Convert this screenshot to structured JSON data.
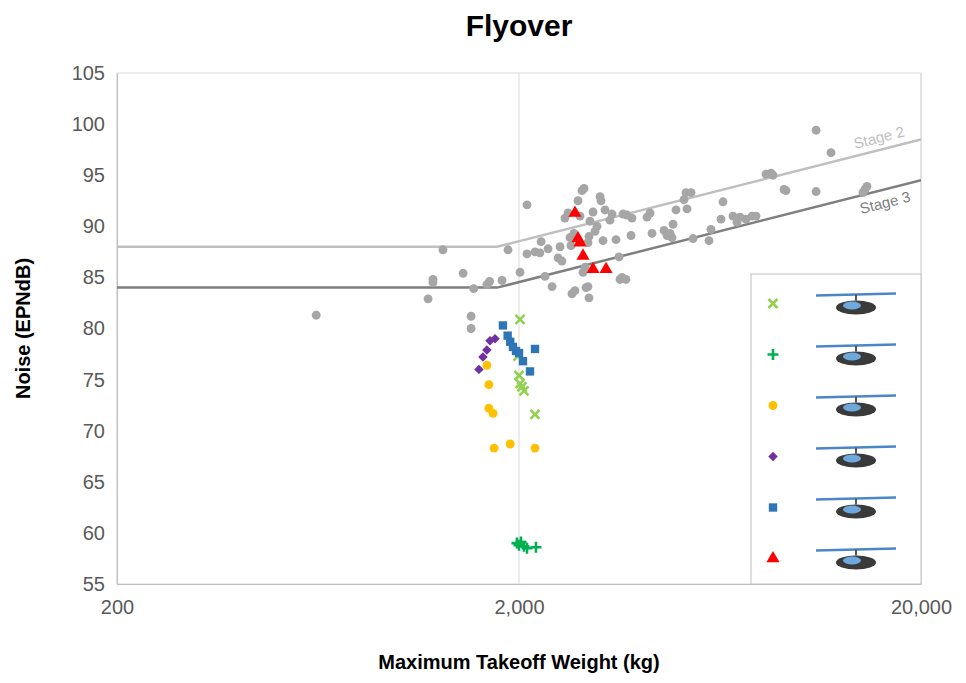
{
  "chart_data": {
    "type": "scatter",
    "title": "Flyover",
    "x_label": "Maximum Takeoff Weight (kg)",
    "y_label": "Noise (EPNdB)",
    "log": "x",
    "grid": "x",
    "legend": "lower right",
    "xlim": [
      200,
      20000
    ],
    "xticks": [
      200,
      {
        "value": 2000,
        "label": "2,000"
      },
      {
        "value": 20000,
        "label": "20,000"
      }
    ],
    "ylim": [
      55,
      105
    ],
    "yticks": [
      55,
      60,
      65,
      70,
      75,
      80,
      85,
      90,
      95,
      100,
      105
    ],
    "series": [
      {
        "type": "scatter",
        "color": "#a6a6a6",
        "x": [
          626,
          1188,
          1222,
          1222,
          1294,
          1452,
          1520,
          1520,
          1543,
          1664,
          1690,
          1815,
          1878,
          2012,
          2094,
          2094,
          2192,
          2254,
          2270,
          2322,
          2417,
          2362,
          2502,
          2558,
          2530,
          2602,
          2649,
          2678,
          2694,
          2709,
          2756,
          2740,
          2804,
          2836,
          2869,
          2903,
          2886,
          2919,
          2936,
          2969,
          2986,
          2969,
          2986,
          3003,
          3056,
          3091,
          3127,
          3181,
          3199,
          3236,
          3273,
          3368,
          3408,
          3486,
          3547,
          3567,
          3608,
          3691,
          3629,
          3712,
          3821,
          3799,
          4164,
          4236,
          4285,
          4590,
          4670,
          4750,
          4805,
          4833,
          4916,
          5146,
          5206,
          5358,
          5236,
          5420,
          5938,
          6006,
          6361,
          6434,
          6813,
          6970,
          7091,
          7340,
          7596,
          7774,
          8232,
          8474,
          8567,
          9126,
          9230,
          10967,
          10967,
          11944,
          14347,
          14510,
          14678
        ],
        "values": [
          81.3,
          82.9,
          84.5,
          84.8,
          87.7,
          85.4,
          81.2,
          80.0,
          83.9,
          84.3,
          84.6,
          84.7,
          87.7,
          85.5,
          92.1,
          87.3,
          87.5,
          87.4,
          88.5,
          85.1,
          84.1,
          87.8,
          86.9,
          86.6,
          88.0,
          90.8,
          91.3,
          88.9,
          88.1,
          83.4,
          83.7,
          89.3,
          92.5,
          91.0,
          93.5,
          93.7,
          85.5,
          86.0,
          84.0,
          84.1,
          83.0,
          88.4,
          89.0,
          90.5,
          91.4,
          89.5,
          90.0,
          92.9,
          92.5,
          88.6,
          91.6,
          90.6,
          91.2,
          88.7,
          87.0,
          84.8,
          85.0,
          84.8,
          91.2,
          91.1,
          90.8,
          89.1,
          90.9,
          91.3,
          89.3,
          89.6,
          89.1,
          89.3,
          88.9,
          90.2,
          91.6,
          92.6,
          93.3,
          93.3,
          91.7,
          88.8,
          88.6,
          89.7,
          90.7,
          92.4,
          91.0,
          90.4,
          90.9,
          90.7,
          91.0,
          91.0,
          95.1,
          95.2,
          95.0,
          93.6,
          93.5,
          99.4,
          93.4,
          97.2,
          93.3,
          93.6,
          93.9
        ]
      },
      {
        "name": "Stage 2",
        "type": "line",
        "color": "#bfbfbf",
        "line_style": "solid",
        "x": [
          200,
          1764,
          20000
        ],
        "values": [
          88,
          88,
          98.5
        ]
      },
      {
        "name": "Stage 3",
        "type": "line",
        "color": "#7f7f7f",
        "line_style": "solid",
        "x": [
          200,
          1764,
          20000
        ],
        "values": [
          84,
          84,
          94.5
        ]
      },
      {
        "type": "scatter",
        "color": "#92d050",
        "marker": "x",
        "x": [
          2012,
          1989,
          2000,
          2012,
          2034,
          2058,
          2192
        ],
        "values": [
          80.9,
          77.3,
          75.4,
          74.6,
          74.3,
          73.9,
          71.6
        ]
      },
      {
        "type": "scatter",
        "color": "#00b050",
        "marker": "plus",
        "x": [
          1977,
          2000,
          2023,
          2058,
          2094,
          2204
        ],
        "values": [
          59.0,
          58.8,
          59.1,
          58.7,
          58.5,
          58.6
        ]
      },
      {
        "type": "scatter",
        "color": "#ffc000",
        "marker": "circle",
        "x": [
          1664,
          1683,
          1683,
          1724,
          1734,
          1902,
          2192
        ],
        "values": [
          76.4,
          74.5,
          72.2,
          71.7,
          68.3,
          68.7,
          68.3
        ]
      },
      {
        "type": "scatter",
        "color": "#7030a0",
        "marker": "diamond",
        "x": [
          1590,
          1627,
          1664,
          1694,
          1744
        ],
        "values": [
          76.0,
          77.2,
          77.9,
          78.8,
          79.0
        ]
      },
      {
        "type": "scatter",
        "color": "#2e75b6",
        "marker": "square",
        "x": [
          1824,
          1874,
          1902,
          1932,
          1966,
          2000,
          2046,
          2130,
          2192
        ],
        "values": [
          80.3,
          79.3,
          78.7,
          78.2,
          77.8,
          77.6,
          76.8,
          75.8,
          78.0
        ]
      },
      {
        "type": "scatter",
        "color": "#ff0000",
        "marker": "triangle",
        "x": [
          2756,
          2804,
          2836,
          2886,
          3056,
          3293
        ],
        "values": [
          91.3,
          88.8,
          88.4,
          87.1,
          85.8,
          85.8
        ]
      }
    ]
  }
}
